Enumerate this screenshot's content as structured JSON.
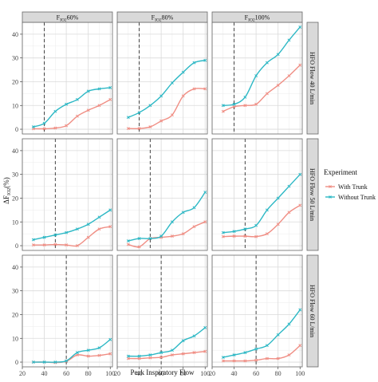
{
  "chart_data": {
    "type": "line",
    "xlabel": "Peak Inspiratory Flow",
    "ylabel": "ΔF_IO2(%)",
    "x_ticks": [
      20,
      40,
      60,
      80,
      100
    ],
    "x_tick_labels": [
      "20",
      "40",
      "60",
      "80",
      "100"
    ],
    "y_ticks": [
      0,
      10,
      20,
      30,
      40
    ],
    "y_tick_labels": [
      "0",
      "10",
      "20",
      "30",
      "40"
    ],
    "xlim": [
      20,
      102
    ],
    "ylim": [
      -2,
      45
    ],
    "grid": true,
    "legend_position": "right",
    "col_strip_labels": [
      "F_IO2 60%",
      "F_IO2 80%",
      "F_IO2 100%"
    ],
    "row_strip_labels": [
      "HFO Flow 40 L/min",
      "HFO Flow 50 L/min",
      "HFO Flow 60 L/min"
    ],
    "legend": {
      "title": "Experiment",
      "entries": [
        {
          "name": "With Trunk",
          "color": "#F08E84"
        },
        {
          "name": "Without Trunk",
          "color": "#2DB8C5"
        }
      ]
    },
    "colors": {
      "with_trunk": "#F08E84",
      "without_trunk": "#2DB8C5"
    },
    "panels": [
      {
        "row": 0,
        "col": 0,
        "vline": 40,
        "x": [
          30,
          40,
          50,
          60,
          70,
          80,
          90,
          100
        ],
        "with_trunk": [
          0.2,
          0.2,
          0.5,
          1.5,
          5.5,
          8.0,
          10.0,
          12.5
        ],
        "without_trunk": [
          1.0,
          2.5,
          7.5,
          10.5,
          12.5,
          16.0,
          17.0,
          17.5
        ]
      },
      {
        "row": 0,
        "col": 1,
        "vline": 40,
        "x": [
          30,
          40,
          50,
          60,
          70,
          80,
          90,
          100
        ],
        "with_trunk": [
          0.3,
          0.3,
          1.0,
          3.5,
          6.0,
          14.0,
          17.0,
          17.0
        ],
        "without_trunk": [
          5.0,
          7.0,
          10.0,
          14.0,
          19.5,
          24.0,
          28.0,
          29.0
        ]
      },
      {
        "row": 0,
        "col": 2,
        "vline": 40,
        "x": [
          30,
          40,
          50,
          60,
          70,
          80,
          90,
          100
        ],
        "with_trunk": [
          7.5,
          9.5,
          10.0,
          10.5,
          15.0,
          18.5,
          22.5,
          27.0
        ],
        "without_trunk": [
          10.0,
          10.5,
          13.5,
          22.5,
          28.0,
          31.5,
          37.5,
          43.0
        ]
      },
      {
        "row": 1,
        "col": 0,
        "vline": 50,
        "x": [
          30,
          40,
          50,
          60,
          70,
          80,
          90,
          100
        ],
        "with_trunk": [
          0.3,
          0.3,
          0.5,
          0.3,
          0.0,
          3.5,
          7.0,
          8.0
        ],
        "without_trunk": [
          2.5,
          3.5,
          4.5,
          5.5,
          7.0,
          9.0,
          12.0,
          15.0
        ]
      },
      {
        "row": 1,
        "col": 1,
        "vline": 50,
        "x": [
          30,
          40,
          50,
          60,
          70,
          80,
          90,
          100
        ],
        "with_trunk": [
          0.5,
          -0.5,
          3.0,
          3.5,
          4.0,
          5.0,
          8.0,
          10.0
        ],
        "without_trunk": [
          2.0,
          3.0,
          3.0,
          4.0,
          10.0,
          14.0,
          16.0,
          22.5
        ]
      },
      {
        "row": 1,
        "col": 2,
        "vline": 50,
        "x": [
          30,
          40,
          50,
          60,
          70,
          80,
          90,
          100
        ],
        "with_trunk": [
          3.8,
          4.0,
          4.0,
          3.8,
          5.0,
          9.0,
          14.0,
          17.0
        ],
        "without_trunk": [
          5.5,
          6.0,
          7.0,
          8.5,
          15.0,
          20.0,
          25.0,
          30.0
        ]
      },
      {
        "row": 2,
        "col": 0,
        "vline": 60,
        "x": [
          30,
          40,
          50,
          60,
          70,
          80,
          90,
          100
        ],
        "with_trunk": [
          0.0,
          0.0,
          -0.2,
          0.3,
          3.0,
          2.5,
          2.8,
          3.5
        ],
        "without_trunk": [
          0.0,
          0.0,
          0.0,
          0.5,
          4.0,
          5.0,
          6.0,
          9.5
        ]
      },
      {
        "row": 2,
        "col": 1,
        "vline": 60,
        "x": [
          30,
          40,
          50,
          60,
          70,
          80,
          90,
          100
        ],
        "with_trunk": [
          1.5,
          1.5,
          1.8,
          2.0,
          3.0,
          3.5,
          4.0,
          4.5
        ],
        "without_trunk": [
          2.5,
          2.5,
          3.0,
          4.0,
          5.0,
          9.0,
          11.0,
          14.5
        ]
      },
      {
        "row": 2,
        "col": 2,
        "vline": 60,
        "x": [
          30,
          40,
          50,
          60,
          70,
          80,
          90,
          100
        ],
        "with_trunk": [
          0.5,
          0.5,
          0.5,
          0.8,
          1.5,
          1.5,
          3.0,
          7.0
        ],
        "without_trunk": [
          2.0,
          3.0,
          4.0,
          5.5,
          7.0,
          11.5,
          16.0,
          22.0
        ]
      }
    ]
  }
}
